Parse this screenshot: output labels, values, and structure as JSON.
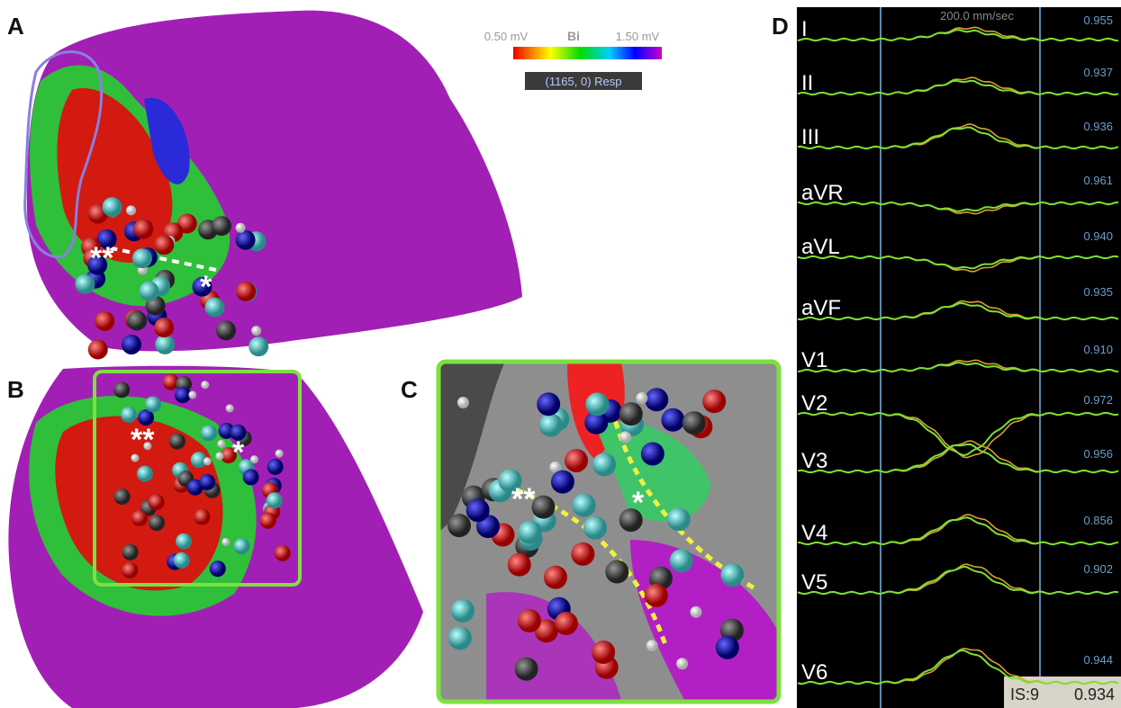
{
  "panels": {
    "a": {
      "label": "A",
      "colorbar": {
        "min": "0.50 mV",
        "mode": "Bi",
        "max": "1.50 mV",
        "status": "(1165, 0) Resp"
      },
      "markers": [
        "**",
        "*"
      ]
    },
    "b": {
      "label": "B",
      "markers": [
        "**",
        "*"
      ]
    },
    "c": {
      "label": "C",
      "markers": [
        "**",
        "*"
      ]
    },
    "d": {
      "label": "D",
      "speed": "200.0 mm/sec",
      "leads": [
        {
          "name": "I",
          "correlation": "0.955"
        },
        {
          "name": "II",
          "correlation": "0.937"
        },
        {
          "name": "III",
          "correlation": "0.936"
        },
        {
          "name": "aVR",
          "correlation": "0.961"
        },
        {
          "name": "aVL",
          "correlation": "0.940"
        },
        {
          "name": "aVF",
          "correlation": "0.935"
        },
        {
          "name": "V1",
          "correlation": "0.910"
        },
        {
          "name": "V2",
          "correlation": "0.972"
        },
        {
          "name": "V3",
          "correlation": "0.956"
        },
        {
          "name": "V4",
          "correlation": "0.856"
        },
        {
          "name": "V5",
          "correlation": "0.902"
        },
        {
          "name": "V6",
          "correlation": "0.944"
        }
      ],
      "summary": {
        "id": "IS:9",
        "value": "0.934"
      }
    }
  }
}
